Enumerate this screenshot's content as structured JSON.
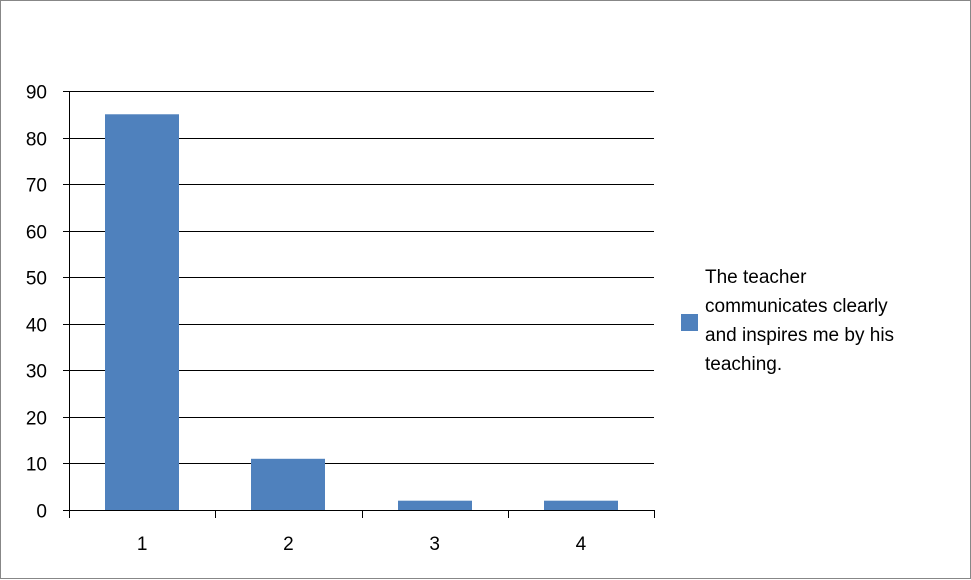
{
  "chart_data": {
    "type": "bar",
    "title": "",
    "xlabel": "",
    "ylabel": "",
    "categories": [
      "1",
      "2",
      "3",
      "4"
    ],
    "series": [
      {
        "name": "The teacher communicates  clearly and inspires me by his teaching.",
        "legend_lines": [
          "The teacher",
          "communicates  clearly",
          "and inspires me by his",
          "teaching."
        ],
        "values": [
          85,
          11,
          2,
          2
        ]
      }
    ],
    "ylim": [
      0,
      90
    ],
    "yticks": [
      0,
      10,
      20,
      30,
      40,
      50,
      60,
      70,
      80,
      90
    ],
    "grid": true,
    "legend_position": "right",
    "bar_color": "#4f81bd"
  }
}
